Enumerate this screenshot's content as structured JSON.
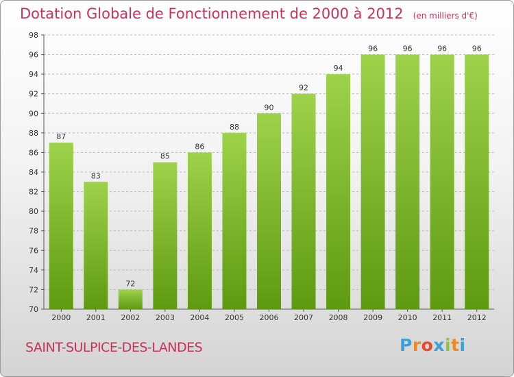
{
  "title": "Dotation Globale de Fonctionnement de 2000 à 2012",
  "unit_note": "(en milliers d'€)",
  "commune": "SAINT-SULPICE-DES-LANDES",
  "logo": {
    "letters": [
      "P",
      "r",
      "o",
      "x",
      "i",
      "t",
      "i"
    ],
    "colors": [
      "#3aa0d8",
      "#f08a1c",
      "#e84a2c",
      "#3aa0d8",
      "#8cc63f",
      "#f08a1c",
      "#3aa0d8"
    ]
  },
  "colors": {
    "bar_light": "#9ed24a",
    "bar_dark": "#5e9a10",
    "grid": "#b8b8b8",
    "axis": "#555555",
    "text": "#333333",
    "title": "#c8335a"
  },
  "chart_data": {
    "type": "bar",
    "title": "Dotation Globale de Fonctionnement de 2000 à 2012",
    "xlabel": "",
    "ylabel": "",
    "categories": [
      "2000",
      "2001",
      "2002",
      "2003",
      "2004",
      "2005",
      "2006",
      "2007",
      "2008",
      "2009",
      "2010",
      "2011",
      "2012"
    ],
    "values": [
      87,
      83,
      72,
      85,
      86,
      88,
      90,
      92,
      94,
      96,
      96,
      96,
      96
    ],
    "ylim": [
      70,
      98
    ],
    "yticks": [
      70,
      72,
      74,
      76,
      78,
      80,
      82,
      84,
      86,
      88,
      90,
      92,
      94,
      96,
      98
    ],
    "grid": true,
    "data_labels": true
  }
}
